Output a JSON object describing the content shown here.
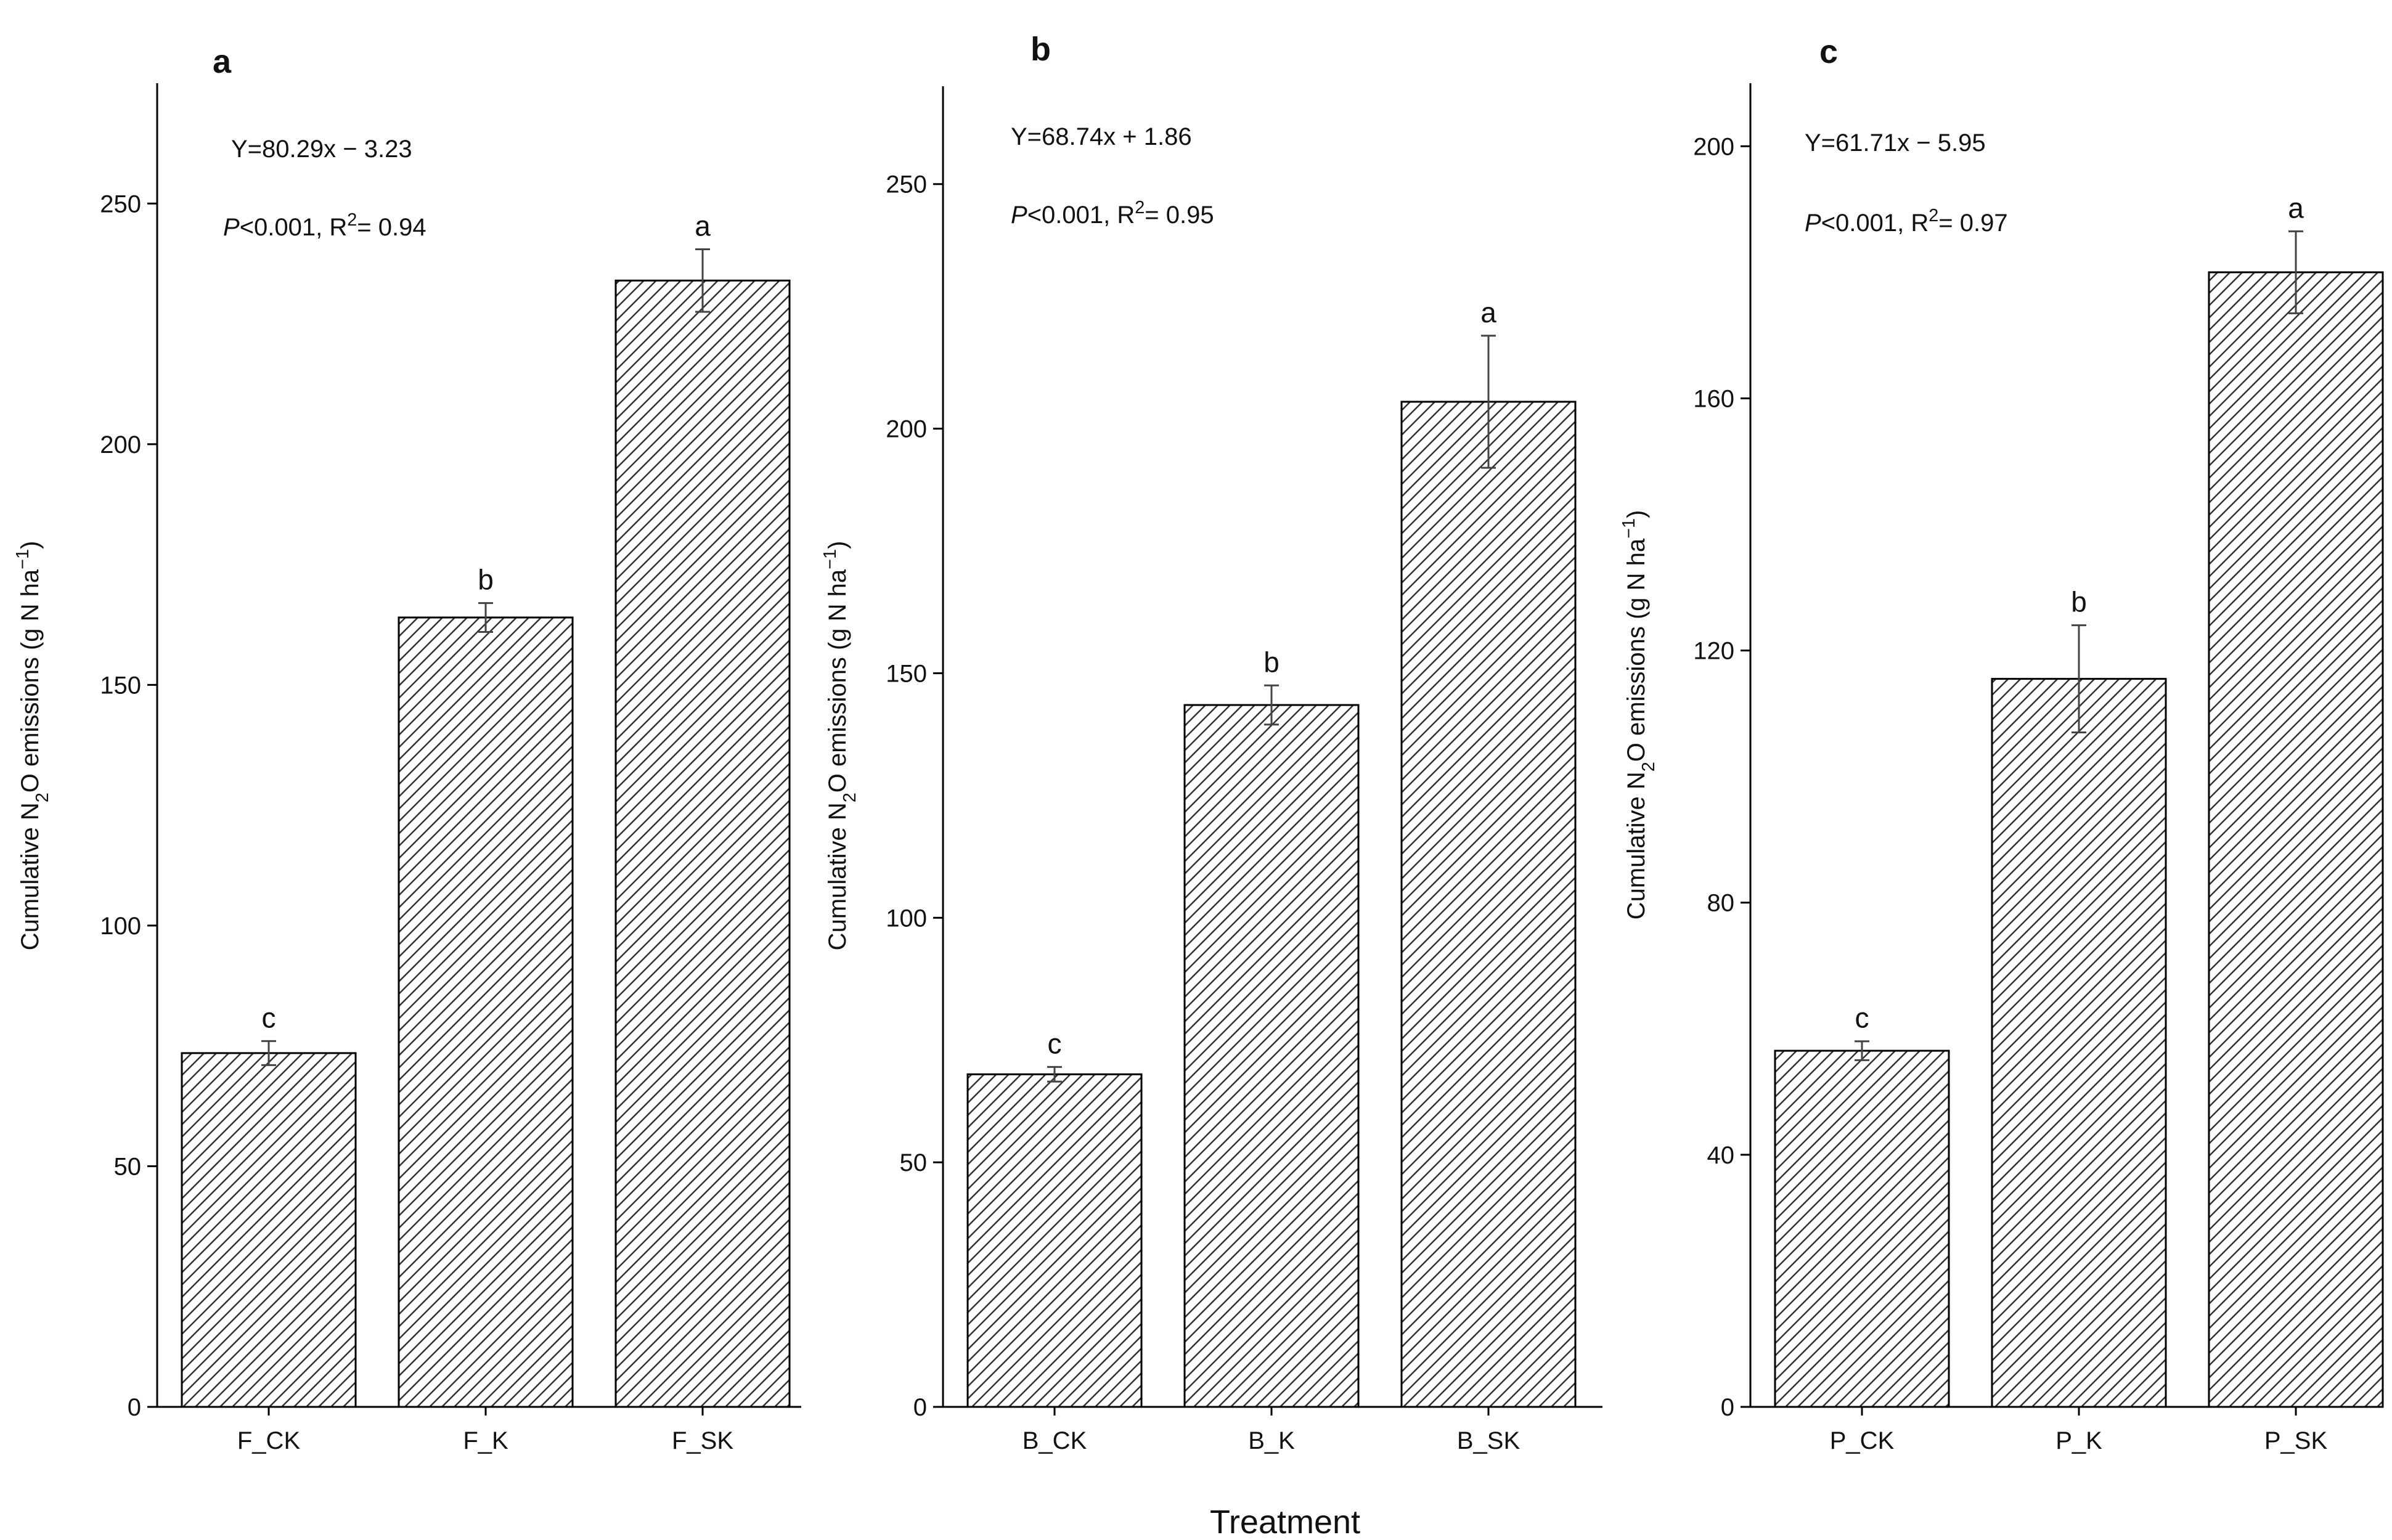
{
  "figure": {
    "xlabel": "Treatment",
    "ylabel": {
      "before": "Cumulative N",
      "sub": "2",
      "middle": "O emissions (g N ha",
      "sup": "−1",
      "after": ")"
    }
  },
  "chart_data": [
    {
      "type": "bar",
      "panel": "a",
      "categories": [
        "F_CK",
        "F_K",
        "F_SK"
      ],
      "values": [
        73.5,
        164,
        234
      ],
      "errors": [
        2.5,
        3,
        6.5
      ],
      "significance": [
        "c",
        "b",
        "a"
      ],
      "ylim": [
        0,
        275
      ],
      "yticks": [
        0,
        50,
        100,
        150,
        200,
        250
      ],
      "equation": "Y=80.29x − 3.23",
      "stats": {
        "p": "P",
        "p_rest": "<0.001, R",
        "r_sup": "2",
        "r_rest": "= 0.94"
      }
    },
    {
      "type": "bar",
      "panel": "b",
      "categories": [
        "B_CK",
        "B_K",
        "B_SK"
      ],
      "values": [
        68,
        143.5,
        205.5
      ],
      "errors": [
        1.5,
        4,
        13.5
      ],
      "significance": [
        "c",
        "b",
        "a"
      ],
      "ylim": [
        0,
        270
      ],
      "yticks": [
        0,
        50,
        100,
        150,
        200,
        250
      ],
      "equation": "Y=68.74x + 1.86",
      "stats": {
        "p": "P",
        "p_rest": "<0.001, R",
        "r_sup": "2",
        "r_rest": "= 0.95"
      }
    },
    {
      "type": "bar",
      "panel": "c",
      "categories": [
        "P_CK",
        "P_K",
        "P_SK"
      ],
      "values": [
        56.5,
        115.5,
        180
      ],
      "errors": [
        1.5,
        8.5,
        6.5
      ],
      "significance": [
        "c",
        "b",
        "a"
      ],
      "ylim": [
        0,
        210
      ],
      "yticks": [
        0,
        40,
        80,
        120,
        160,
        200
      ],
      "equation": "Y=61.71x − 5.95",
      "stats": {
        "p": "P",
        "p_rest": "<0.001, R",
        "r_sup": "2",
        "r_rest": "= 0.97"
      }
    }
  ]
}
